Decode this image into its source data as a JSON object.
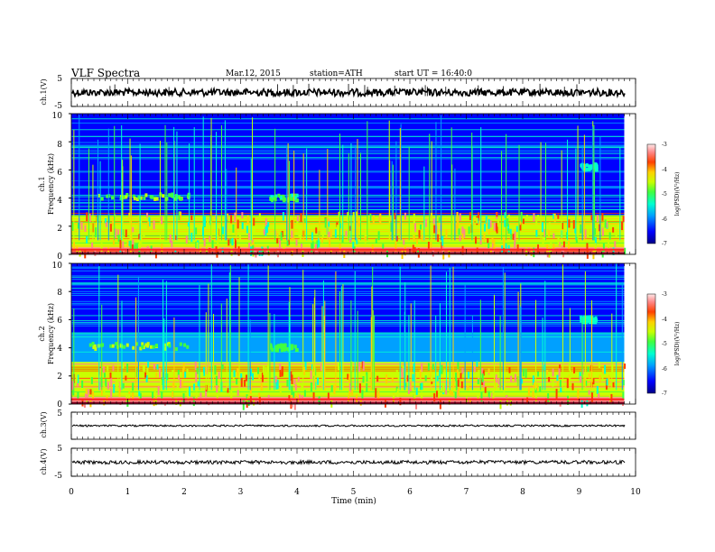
{
  "header": {
    "title": "VLF  Spectra",
    "date": "Mar.12, 2015",
    "station": "station=ATH",
    "start": "start  UT =   16:40:0"
  },
  "chart_data": [
    {
      "type": "line",
      "panel": "ch1-voltage",
      "ylabel": "ch.1(V)",
      "ylim": [
        -5,
        5
      ],
      "y_ticks": [
        "5",
        "-5"
      ],
      "xlim": [
        0,
        10
      ],
      "series": [
        {
          "approx_level": 0,
          "noise_amplitude": 0.8,
          "color": "#000000"
        }
      ]
    },
    {
      "type": "heatmap",
      "panel": "ch1-spectrogram",
      "ylabel": "ch.1",
      "ylabel2": "Frequency  (kHz)",
      "xlim": [
        0,
        9.8
      ],
      "ylim": [
        0,
        10
      ],
      "y_ticks": [
        "0",
        "2",
        "4",
        "6",
        "8",
        "10"
      ],
      "colorbar": {
        "label": "log(PSD)(V²/Hz)",
        "range": [
          -7,
          -3
        ],
        "ticks": [
          "-3",
          "-4",
          "-5",
          "-6",
          "-7"
        ]
      },
      "bands_khz": [
        {
          "lo": 0.0,
          "hi": 0.5,
          "level": -3.5
        },
        {
          "lo": 0.5,
          "hi": 2.8,
          "level": -5.0
        },
        {
          "lo": 2.8,
          "hi": 5.0,
          "level": -6.2
        },
        {
          "lo": 5.0,
          "hi": 10.0,
          "level": -6.6
        }
      ],
      "emission_patches": [
        {
          "x0": 0.3,
          "x1": 2.1,
          "f": 4.1,
          "level": -5.3
        },
        {
          "x0": 3.5,
          "x1": 4.0,
          "f": 4.0,
          "level": -5.5
        },
        {
          "x0": 9.0,
          "x1": 9.3,
          "f": 6.2,
          "level": -5.8
        }
      ]
    },
    {
      "type": "heatmap",
      "panel": "ch2-spectrogram",
      "ylabel": "ch.2",
      "ylabel2": "Frequency  (kHz)",
      "xlim": [
        0,
        9.8
      ],
      "ylim": [
        0,
        10
      ],
      "y_ticks": [
        "0",
        "2",
        "4",
        "6",
        "8",
        "10"
      ],
      "colorbar": {
        "label": "log(PSD)(V²/Hz)",
        "range": [
          -7,
          -3
        ],
        "ticks": [
          "-3",
          "-4",
          "-5",
          "-6",
          "-7"
        ]
      },
      "bands_khz": [
        {
          "lo": 0.0,
          "hi": 0.5,
          "level": -3.8
        },
        {
          "lo": 0.5,
          "hi": 3.0,
          "level": -4.8
        },
        {
          "lo": 3.0,
          "hi": 5.0,
          "level": -5.9
        },
        {
          "lo": 5.0,
          "hi": 10.0,
          "level": -6.5
        }
      ],
      "emission_patches": [
        {
          "x0": 0.3,
          "x1": 2.1,
          "f": 4.1,
          "level": -5.2
        },
        {
          "x0": 3.5,
          "x1": 4.0,
          "f": 4.0,
          "level": -5.4
        },
        {
          "x0": 9.0,
          "x1": 9.3,
          "f": 6.0,
          "level": -5.8
        }
      ]
    },
    {
      "type": "line",
      "panel": "ch3-voltage",
      "ylabel": "ch.3(V)",
      "ylim": [
        -5,
        5
      ],
      "y_ticks": [
        "5"
      ],
      "xlim": [
        0,
        10
      ],
      "series": [
        {
          "approx_level": 0,
          "noise_amplitude": 0.25,
          "color": "#000000"
        }
      ]
    },
    {
      "type": "line",
      "panel": "ch4-voltage",
      "ylabel": "ch.4(V)",
      "ylim": [
        -5,
        5
      ],
      "y_ticks": [
        "5",
        "-5"
      ],
      "xlim": [
        0,
        10
      ],
      "series": [
        {
          "approx_level": 0,
          "noise_amplitude": 0.05,
          "color": "#000000"
        }
      ]
    }
  ],
  "x_axis": {
    "label": "Time  (min)",
    "ticks": [
      "0",
      "1",
      "2",
      "3",
      "4",
      "5",
      "6",
      "7",
      "8",
      "9",
      "10"
    ],
    "range": [
      0,
      10
    ]
  },
  "colors": {
    "scale": [
      "#000088",
      "#0000ff",
      "#00a0ff",
      "#00ffd0",
      "#40ff40",
      "#c8ff00",
      "#ffd000",
      "#ff4000",
      "#ff8888",
      "#ffe0e0"
    ]
  }
}
